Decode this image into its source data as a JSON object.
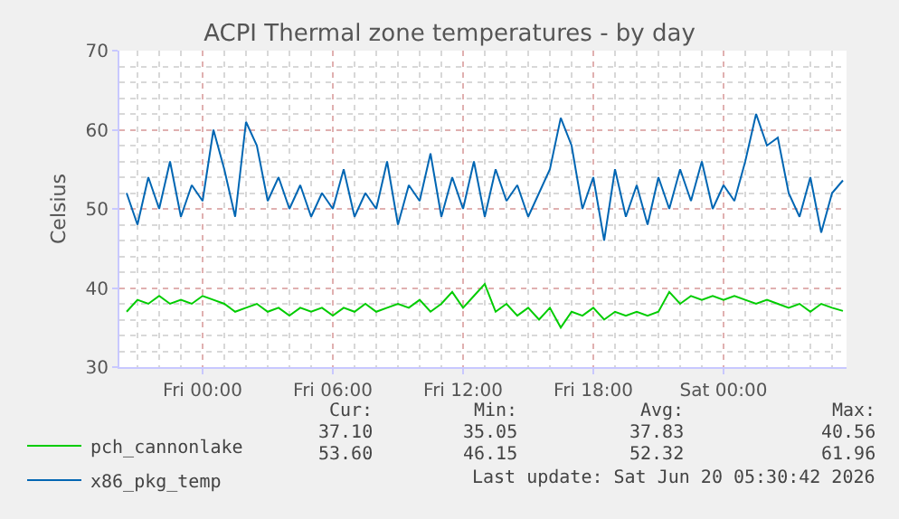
{
  "chart_data": {
    "type": "line",
    "title": "ACPI Thermal zone temperatures - by day",
    "ylabel": "Celsius",
    "x": [
      "2026-06-18T20:30",
      "2026-06-18T21:00",
      "2026-06-18T21:30",
      "2026-06-18T22:00",
      "2026-06-18T22:30",
      "2026-06-18T23:00",
      "2026-06-18T23:30",
      "2026-06-19T00:00",
      "2026-06-19T00:30",
      "2026-06-19T01:00",
      "2026-06-19T01:30",
      "2026-06-19T02:00",
      "2026-06-19T02:30",
      "2026-06-19T03:00",
      "2026-06-19T03:30",
      "2026-06-19T04:00",
      "2026-06-19T04:30",
      "2026-06-19T05:00",
      "2026-06-19T05:30",
      "2026-06-19T06:00",
      "2026-06-19T06:30",
      "2026-06-19T07:00",
      "2026-06-19T07:30",
      "2026-06-19T08:00",
      "2026-06-19T08:30",
      "2026-06-19T09:00",
      "2026-06-19T09:30",
      "2026-06-19T10:00",
      "2026-06-19T10:30",
      "2026-06-19T11:00",
      "2026-06-19T11:30",
      "2026-06-19T12:00",
      "2026-06-19T12:30",
      "2026-06-19T13:00",
      "2026-06-19T13:30",
      "2026-06-19T14:00",
      "2026-06-19T14:30",
      "2026-06-19T15:00",
      "2026-06-19T15:30",
      "2026-06-19T16:00",
      "2026-06-19T16:30",
      "2026-06-19T17:00",
      "2026-06-19T17:30",
      "2026-06-19T18:00",
      "2026-06-19T18:30",
      "2026-06-19T19:00",
      "2026-06-19T19:30",
      "2026-06-19T20:00",
      "2026-06-19T20:30",
      "2026-06-19T21:00",
      "2026-06-19T21:30",
      "2026-06-19T22:00",
      "2026-06-19T22:30",
      "2026-06-19T23:00",
      "2026-06-19T23:30",
      "2026-06-20T00:00",
      "2026-06-20T00:30",
      "2026-06-20T01:00",
      "2026-06-20T01:30",
      "2026-06-20T02:00",
      "2026-06-20T02:30",
      "2026-06-20T03:00",
      "2026-06-20T03:30",
      "2026-06-20T04:00",
      "2026-06-20T04:30",
      "2026-06-20T05:00",
      "2026-06-20T05:30"
    ],
    "series": [
      {
        "name": "pch_cannonlake",
        "color": "#00cc00",
        "values": [
          37,
          38.5,
          38,
          39,
          38,
          38.5,
          38,
          39,
          38.5,
          38,
          37,
          37.5,
          38,
          37,
          37.5,
          36.5,
          37.5,
          37,
          37.5,
          36.5,
          37.5,
          37,
          38,
          37,
          37.5,
          38,
          37.5,
          38.5,
          37,
          38,
          39.5,
          37.5,
          39,
          40.5,
          37,
          38,
          36.5,
          37.5,
          36,
          37.5,
          35,
          37,
          36.5,
          37.5,
          36,
          37,
          36.5,
          37,
          36.5,
          37,
          39.5,
          38,
          39,
          38.5,
          39,
          38.5,
          39,
          38.5,
          38,
          38.5,
          38,
          37.5,
          38,
          37,
          38,
          37.5,
          37.1
        ]
      },
      {
        "name": "x86_pkg_temp",
        "color": "#0066b3",
        "values": [
          52,
          48,
          54,
          50,
          56,
          49,
          53,
          51,
          60,
          55,
          49,
          61,
          58,
          51,
          54,
          50,
          53,
          49,
          52,
          50,
          55,
          49,
          52,
          50,
          56,
          48,
          53,
          51,
          57,
          49,
          54,
          50,
          56,
          49,
          55,
          51,
          53,
          49,
          52,
          55,
          61.5,
          58,
          50,
          54,
          46,
          55,
          49,
          53,
          48,
          54,
          50,
          55,
          51,
          56,
          50,
          53,
          51,
          56,
          62,
          58,
          59,
          52,
          49,
          54,
          47,
          52,
          53.6
        ]
      }
    ],
    "xlim": [
      "2026-06-18T20:10",
      "2026-06-20T05:40"
    ],
    "xticks": [
      {
        "value": "2026-06-19T00:00",
        "label": "Fri 00:00"
      },
      {
        "value": "2026-06-19T06:00",
        "label": "Fri 06:00"
      },
      {
        "value": "2026-06-19T12:00",
        "label": "Fri 12:00"
      },
      {
        "value": "2026-06-19T18:00",
        "label": "Fri 18:00"
      },
      {
        "value": "2026-06-20T00:00",
        "label": "Sat 00:00"
      }
    ],
    "ylim": [
      30,
      70
    ],
    "yticks": [
      30,
      40,
      50,
      60,
      70
    ],
    "grid": true,
    "legend": "bottom left",
    "line_style": "solid",
    "marker": "none",
    "annotations": [
      "Cur:",
      "Min:",
      "Avg:",
      "Max:",
      "37.10",
      "35.05",
      "37.83",
      "40.56",
      "53.60",
      "46.15",
      "52.32",
      "61.96",
      "Last update: Sat Jun 20 05:30:42 2026"
    ]
  }
}
